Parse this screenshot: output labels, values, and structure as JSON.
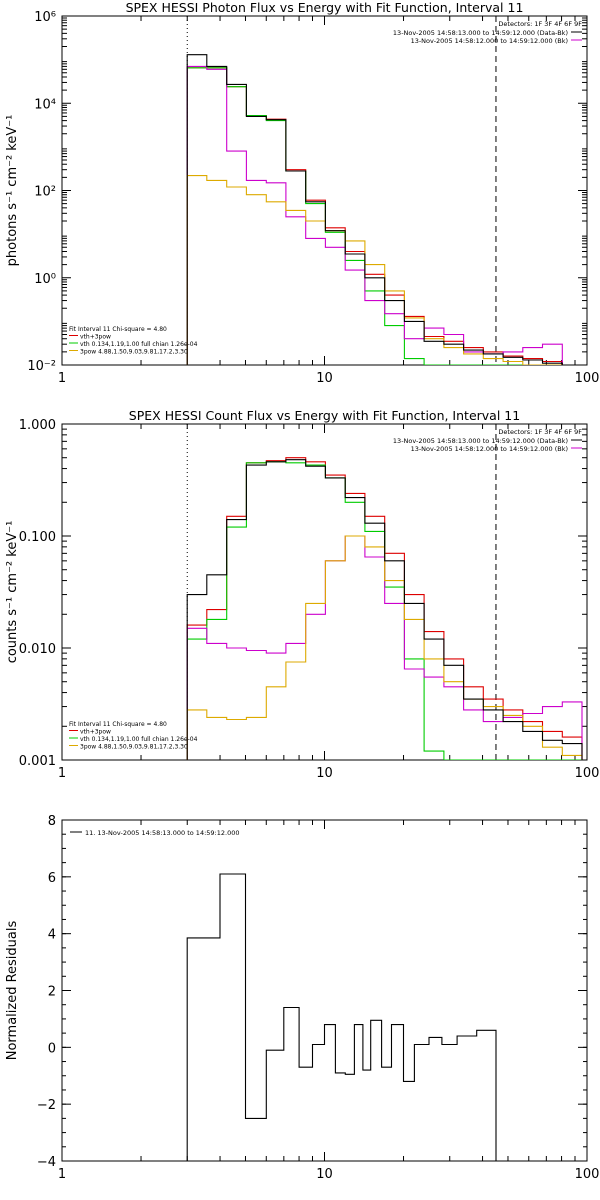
{
  "chart_data": [
    {
      "type": "line",
      "title": "SPEX HESSI Photon Flux vs Energy with Fit Function, Interval 11",
      "ylabel": "photons s⁻¹ cm⁻² keV⁻¹",
      "xscale": "log",
      "yscale": "log",
      "xlim": [
        1,
        100
      ],
      "ylim": [
        0.01,
        1000000
      ],
      "x_ticks": [
        1,
        10,
        100
      ],
      "x_tick_labels": [
        "1",
        "10",
        "100"
      ],
      "y_ticks": [
        0.01,
        1,
        100,
        10000,
        1000000
      ],
      "y_tick_labels": [
        "10⁻²",
        "10⁰",
        "10²",
        "10⁴",
        "10⁶"
      ],
      "vlines": [
        {
          "x": 3.0,
          "style": "dotted"
        },
        {
          "x": 45,
          "style": "dashed"
        }
      ],
      "legend_header": "Detectors: 1F 3F 4F 6F 9F",
      "legend": [
        {
          "label": "13-Nov-2005 14:58:13.000 to 14:59:12.000 (Data-Bk)",
          "color": "#000000"
        },
        {
          "label": "13-Nov-2005 14:58:12.000 to 14:59:12.000 (Bk)",
          "color": "#cc00cc"
        }
      ],
      "fit_info": [
        {
          "text": "Fit Interval 11    Chi-square = 4.80",
          "color": "#000000"
        },
        {
          "text": "vth+3pow",
          "color": "#dd0000"
        },
        {
          "text": "vth 0.134,1.19,1.00  full chian 1.26e-04",
          "color": "#00cc00"
        },
        {
          "text": "3pow 4.88,1.50,9.03,9.81,17.2,3.30",
          "color": "#ddaa00"
        }
      ],
      "series": [
        {
          "color": "#000000",
          "values": [
            130000,
            70000,
            27000,
            5000,
            4200,
            280,
            55,
            12,
            3.5,
            1.0,
            0.3,
            0.1,
            0.035,
            0.03,
            0.022,
            0.018,
            0.015,
            0.013,
            0.011
          ]
        },
        {
          "color": "#dd0000",
          "values": [
            65000,
            65000,
            24000,
            5200,
            4300,
            300,
            60,
            14,
            4.0,
            1.2,
            0.4,
            0.13,
            0.045,
            0.035,
            0.025,
            0.02,
            0.016,
            0.014,
            0.012
          ]
        },
        {
          "color": "#00cc00",
          "values": [
            65000,
            65000,
            24000,
            5200,
            4000,
            280,
            50,
            11,
            2.5,
            0.5,
            0.08,
            0.014,
            0.01,
            0.01,
            0.01,
            0.01,
            0.01,
            0.01,
            0.01
          ]
        },
        {
          "color": "#cc00cc",
          "values": [
            70000,
            60000,
            800,
            170,
            150,
            25,
            8,
            5,
            1.5,
            0.3,
            0.15,
            0.04,
            0.07,
            0.05,
            0.02,
            0.018,
            0.02,
            0.025,
            0.03
          ]
        },
        {
          "color": "#ddaa00",
          "values": [
            220,
            170,
            120,
            80,
            55,
            35,
            20,
            12,
            7.0,
            2.0,
            0.5,
            0.12,
            0.04,
            0.025,
            0.018,
            0.014,
            0.012,
            0.01,
            0.01
          ]
        }
      ]
    },
    {
      "type": "line",
      "title": "SPEX HESSI Count Flux vs Energy with Fit Function, Interval 11",
      "ylabel": "counts s⁻¹ cm⁻² keV⁻¹",
      "xscale": "log",
      "yscale": "log",
      "xlim": [
        1,
        100
      ],
      "ylim": [
        0.001,
        1.0
      ],
      "x_ticks": [
        1,
        10,
        100
      ],
      "x_tick_labels": [
        "1",
        "10",
        "100"
      ],
      "y_ticks": [
        0.001,
        0.01,
        0.1,
        1.0
      ],
      "y_tick_labels": [
        "0.001",
        "0.010",
        "0.100",
        "1.000"
      ],
      "vlines": [
        {
          "x": 3.0,
          "style": "dotted"
        },
        {
          "x": 45,
          "style": "dashed"
        }
      ],
      "legend_header": "Detectors: 1F 3F 4F 6F 9F",
      "legend": [
        {
          "label": "13-Nov-2005 14:58:13.000 to 14:59:12.000 (Data-Bk)",
          "color": "#000000"
        },
        {
          "label": "13-Nov-2005 14:58:12.000 to 14:59:12.000 (Bk)",
          "color": "#cc00cc"
        }
      ],
      "fit_info": [
        {
          "text": "Fit Interval 11    Chi-square = 4.80",
          "color": "#000000"
        },
        {
          "text": "vth+3pow",
          "color": "#dd0000"
        },
        {
          "text": "vth 0.134,1.19,1.00  full chian 1.26e-04",
          "color": "#00cc00"
        },
        {
          "text": "3pow 4.88,1.50,9.03,9.81,17.2,3.30",
          "color": "#ddaa00"
        }
      ],
      "series": [
        {
          "color": "#000000",
          "values": [
            0.03,
            0.045,
            0.14,
            0.43,
            0.46,
            0.48,
            0.42,
            0.33,
            0.22,
            0.13,
            0.06,
            0.025,
            0.012,
            0.007,
            0.0035,
            0.0028,
            0.0022,
            0.0018,
            0.0015,
            0.0014
          ]
        },
        {
          "color": "#dd0000",
          "values": [
            0.016,
            0.022,
            0.15,
            0.45,
            0.47,
            0.5,
            0.46,
            0.35,
            0.24,
            0.15,
            0.07,
            0.03,
            0.014,
            0.008,
            0.0045,
            0.0035,
            0.0028,
            0.0022,
            0.0018,
            0.0016
          ]
        },
        {
          "color": "#00cc00",
          "values": [
            0.012,
            0.018,
            0.12,
            0.45,
            0.46,
            0.45,
            0.43,
            0.33,
            0.2,
            0.11,
            0.035,
            0.008,
            0.0012,
            0.001,
            0.001,
            0.001,
            0.001,
            0.001,
            0.001,
            0.001
          ]
        },
        {
          "color": "#cc00cc",
          "values": [
            0.015,
            0.011,
            0.01,
            0.0095,
            0.009,
            0.011,
            0.02,
            0.06,
            0.1,
            0.065,
            0.025,
            0.0065,
            0.0055,
            0.0045,
            0.0028,
            0.0022,
            0.0024,
            0.0026,
            0.003,
            0.0033
          ]
        },
        {
          "color": "#ddaa00",
          "values": [
            0.0028,
            0.0024,
            0.0023,
            0.0024,
            0.0045,
            0.0075,
            0.025,
            0.06,
            0.1,
            0.08,
            0.04,
            0.018,
            0.008,
            0.005,
            0.0035,
            0.003,
            0.0025,
            0.002,
            0.0013,
            0.0011
          ]
        }
      ]
    },
    {
      "type": "line",
      "title": "",
      "ylabel": "Normalized Residuals",
      "xscale": "log",
      "xlim": [
        1,
        100
      ],
      "ylim": [
        -4,
        8
      ],
      "x_ticks": [
        1,
        10,
        100
      ],
      "x_tick_labels": [
        "1",
        "10",
        "100"
      ],
      "y_ticks": [
        -4,
        -2,
        0,
        2,
        4,
        6,
        8
      ],
      "y_tick_labels": [
        "−4",
        "−2",
        "0",
        "2",
        "4",
        "6",
        "8"
      ],
      "legend": [
        {
          "label": "11. 13-Nov-2005 14:58:13.000 to 14:59:12.000",
          "color": "#000000"
        }
      ],
      "series": [
        {
          "color": "#000000",
          "values": [
            3.85,
            6.1,
            -2.5,
            -0.1,
            1.4,
            -0.7,
            0.1,
            0.8,
            -0.9,
            -0.95,
            0.8,
            -0.8,
            0.95,
            -0.7,
            0.8,
            -1.2,
            0.1,
            0.35,
            0.1,
            0.4,
            0.6
          ]
        }
      ]
    }
  ],
  "edges": {
    "photon": [
      3.0,
      3.56,
      4.24,
      5.04,
      6.0,
      7.13,
      8.48,
      10.08,
      11.99,
      14.25,
      16.95,
      20.15,
      23.96,
      28.49,
      33.87,
      40.28,
      47.9,
      56.94,
      67.7,
      80.5
    ],
    "count": [
      3.0,
      3.56,
      4.24,
      5.04,
      6.0,
      7.13,
      8.48,
      10.08,
      11.99,
      14.25,
      16.95,
      20.15,
      23.96,
      28.49,
      33.87,
      40.28,
      47.9,
      56.94,
      67.7,
      80.5,
      95.7
    ],
    "residual": [
      3.0,
      4.0,
      5.0,
      6.0,
      7.0,
      8.0,
      9.0,
      10.0,
      11.0,
      12.0,
      13.0,
      14.0,
      15.0,
      16.5,
      18.0,
      20.0,
      22.0,
      25.0,
      28.0,
      32.0,
      38.0,
      45.0
    ]
  }
}
